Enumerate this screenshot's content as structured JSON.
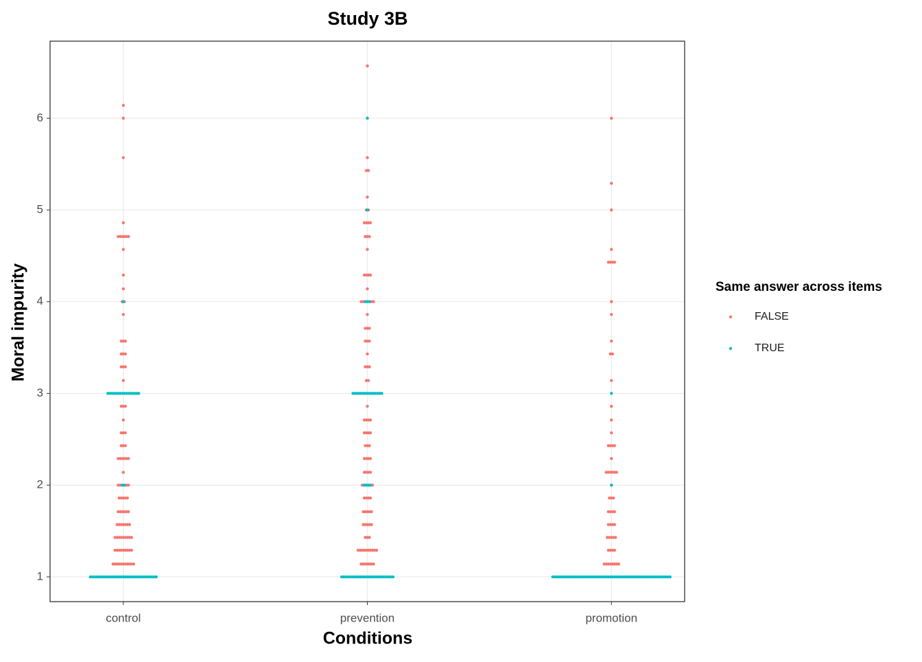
{
  "chart_data": {
    "type": "dotplot",
    "title": "Study 3B",
    "x_label": "Conditions",
    "y_label": "Moral impurity",
    "categories": [
      "control",
      "prevention",
      "promotion"
    ],
    "ylim": [
      0.73,
      6.84
    ],
    "yticks": [
      1,
      2,
      3,
      4,
      5,
      6
    ],
    "grid": true,
    "legend_title": "Same answer across items",
    "legend_position": "right",
    "series": [
      {
        "name": "FALSE",
        "color": "#F8766D",
        "values": [
          [
            {
              "y": 6.14,
              "n": 1
            },
            {
              "y": 6,
              "n": 1
            },
            {
              "y": 5.57,
              "n": 1
            },
            {
              "y": 4.86,
              "n": 1
            },
            {
              "y": 4.71,
              "n": 6
            },
            {
              "y": 4.57,
              "n": 1
            },
            {
              "y": 4.29,
              "n": 1
            },
            {
              "y": 4.14,
              "n": 1
            },
            {
              "y": 4,
              "n": 2
            },
            {
              "y": 3.86,
              "n": 1
            },
            {
              "y": 3.57,
              "n": 3
            },
            {
              "y": 3.43,
              "n": 3
            },
            {
              "y": 3.29,
              "n": 3
            },
            {
              "y": 3.14,
              "n": 1
            },
            {
              "y": 2.86,
              "n": 3
            },
            {
              "y": 2.71,
              "n": 1
            },
            {
              "y": 2.57,
              "n": 3
            },
            {
              "y": 2.43,
              "n": 3
            },
            {
              "y": 2.29,
              "n": 6
            },
            {
              "y": 2.14,
              "n": 1
            },
            {
              "y": 2,
              "n": 6
            },
            {
              "y": 1.86,
              "n": 5
            },
            {
              "y": 1.71,
              "n": 6
            },
            {
              "y": 1.57,
              "n": 7
            },
            {
              "y": 1.43,
              "n": 9
            },
            {
              "y": 1.29,
              "n": 9
            },
            {
              "y": 1.14,
              "n": 11
            }
          ],
          [
            {
              "y": 6.57,
              "n": 1
            },
            {
              "y": 6,
              "n": 1
            },
            {
              "y": 5.57,
              "n": 1
            },
            {
              "y": 5.43,
              "n": 2
            },
            {
              "y": 5.14,
              "n": 1
            },
            {
              "y": 5,
              "n": 2
            },
            {
              "y": 4.86,
              "n": 4
            },
            {
              "y": 4.71,
              "n": 3
            },
            {
              "y": 4.57,
              "n": 1
            },
            {
              "y": 4.29,
              "n": 4
            },
            {
              "y": 4.14,
              "n": 1
            },
            {
              "y": 4,
              "n": 7
            },
            {
              "y": 3.86,
              "n": 1
            },
            {
              "y": 3.71,
              "n": 3
            },
            {
              "y": 3.57,
              "n": 3
            },
            {
              "y": 3.43,
              "n": 1
            },
            {
              "y": 3.29,
              "n": 3
            },
            {
              "y": 3.14,
              "n": 2
            },
            {
              "y": 2.86,
              "n": 1
            },
            {
              "y": 2.71,
              "n": 4
            },
            {
              "y": 2.57,
              "n": 4
            },
            {
              "y": 2.43,
              "n": 3
            },
            {
              "y": 2.29,
              "n": 4
            },
            {
              "y": 2.14,
              "n": 4
            },
            {
              "y": 2,
              "n": 6
            },
            {
              "y": 1.86,
              "n": 4
            },
            {
              "y": 1.71,
              "n": 5
            },
            {
              "y": 1.57,
              "n": 5
            },
            {
              "y": 1.43,
              "n": 3
            },
            {
              "y": 1.29,
              "n": 10
            },
            {
              "y": 1.14,
              "n": 7
            }
          ],
          [
            {
              "y": 6,
              "n": 1
            },
            {
              "y": 5.29,
              "n": 1
            },
            {
              "y": 5,
              "n": 1
            },
            {
              "y": 4.57,
              "n": 1
            },
            {
              "y": 4.43,
              "n": 4
            },
            {
              "y": 4,
              "n": 1
            },
            {
              "y": 3.86,
              "n": 1
            },
            {
              "y": 3.57,
              "n": 1
            },
            {
              "y": 3.43,
              "n": 2
            },
            {
              "y": 3.14,
              "n": 1
            },
            {
              "y": 2.86,
              "n": 1
            },
            {
              "y": 2.71,
              "n": 1
            },
            {
              "y": 2.57,
              "n": 1
            },
            {
              "y": 2.43,
              "n": 4
            },
            {
              "y": 2.29,
              "n": 1
            },
            {
              "y": 2.14,
              "n": 6
            },
            {
              "y": 2,
              "n": 1
            },
            {
              "y": 1.86,
              "n": 3
            },
            {
              "y": 1.71,
              "n": 4
            },
            {
              "y": 1.57,
              "n": 4
            },
            {
              "y": 1.43,
              "n": 5
            },
            {
              "y": 1.29,
              "n": 4
            },
            {
              "y": 1.14,
              "n": 8
            }
          ]
        ]
      },
      {
        "name": "TRUE",
        "color": "#00BFC4",
        "values": [
          [
            {
              "y": 4,
              "n": 1
            },
            {
              "y": 3,
              "n": 16
            },
            {
              "y": 2,
              "n": 2
            },
            {
              "y": 1,
              "n": 33
            }
          ],
          [
            {
              "y": 6,
              "n": 1
            },
            {
              "y": 5,
              "n": 1
            },
            {
              "y": 4,
              "n": 3
            },
            {
              "y": 3,
              "n": 15
            },
            {
              "y": 2,
              "n": 4
            },
            {
              "y": 1,
              "n": 26
            }
          ],
          [
            {
              "y": 3,
              "n": 1
            },
            {
              "y": 2,
              "n": 1
            },
            {
              "y": 1,
              "n": 58
            }
          ]
        ]
      }
    ]
  }
}
